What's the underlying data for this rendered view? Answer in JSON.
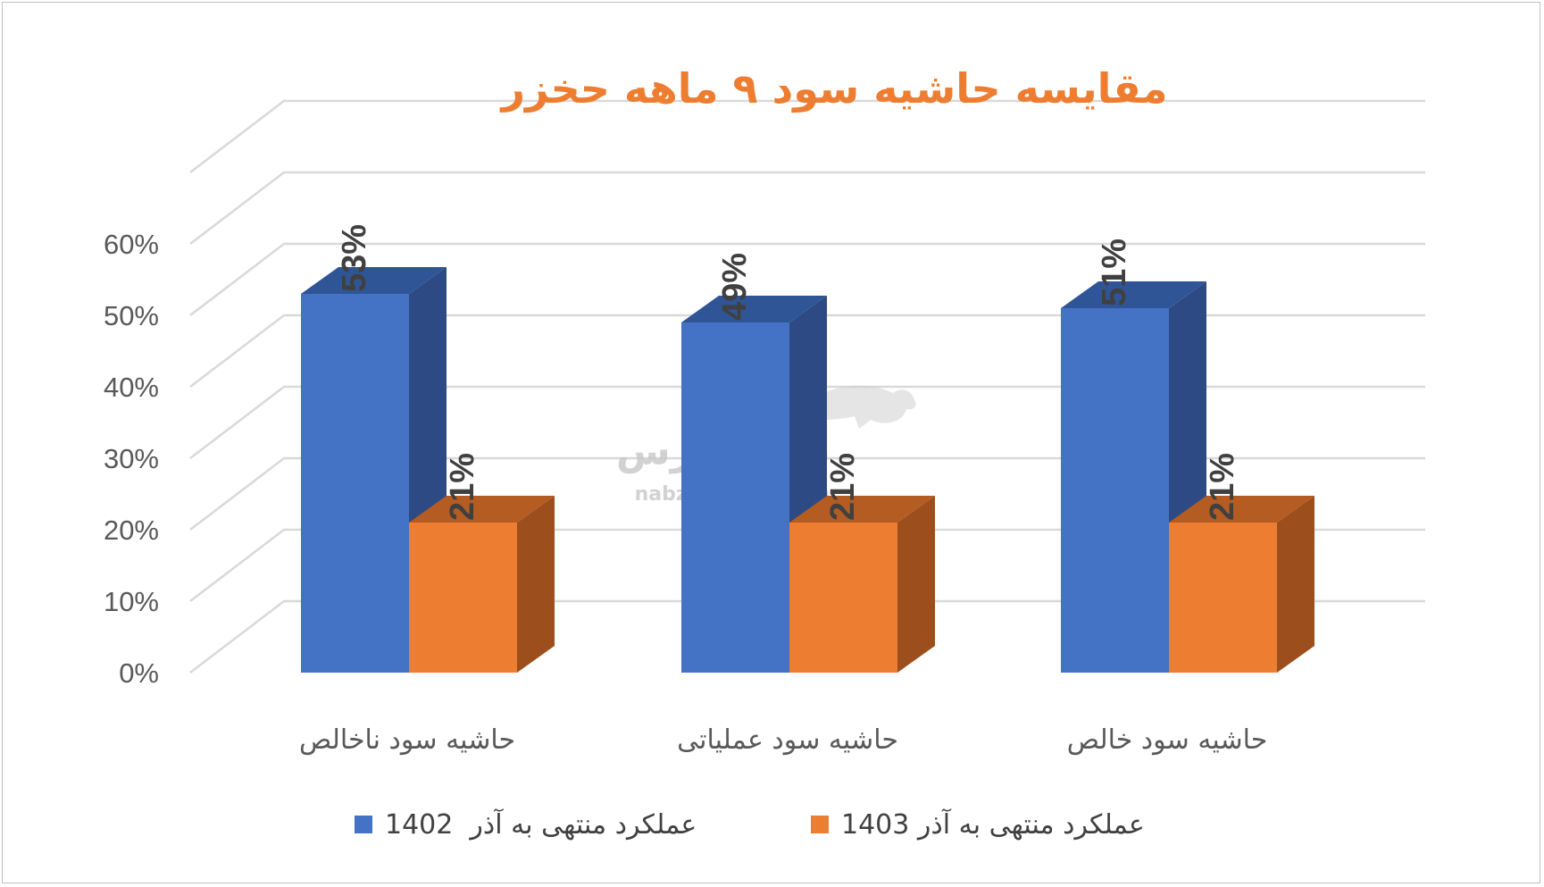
{
  "chart_data": {
    "type": "bar",
    "title": "مقایسه حاشیه سود ۹ ماهه حخزر",
    "categories": [
      "حاشیه سود ناخالص",
      "حاشیه سود عملیاتی",
      "حاشیه سود خالص"
    ],
    "series": [
      {
        "name": "عملکرد منتهی به آذر  1402",
        "values": [
          0.53,
          0.49,
          0.51
        ],
        "labels": [
          "53%",
          "49%",
          "51%"
        ],
        "color": "#4472C4",
        "side_color": "#2E4A85",
        "top_color": "#2F5597"
      },
      {
        "name": "عملکرد منتهی به آذر 1403",
        "values": [
          0.21,
          0.21,
          0.21
        ],
        "labels": [
          "21%",
          "21%",
          "21%"
        ],
        "color": "#ED7D31",
        "side_color": "#9C4F1D",
        "top_color": "#B45C22"
      }
    ],
    "y_ticks": [
      "0%",
      "10%",
      "20%",
      "30%",
      "40%",
      "50%",
      "60%"
    ],
    "ylim": [
      0,
      0.6
    ],
    "grid": true,
    "legend_position": "bottom",
    "style": "3d-column"
  },
  "watermark": {
    "brand": "نبض بورس",
    "url": "nabzebourse.com"
  },
  "colors": {
    "title": "#ED7D31",
    "grid": "#D9D9D9",
    "axis_text": "#595959",
    "data_label": "#404040"
  }
}
